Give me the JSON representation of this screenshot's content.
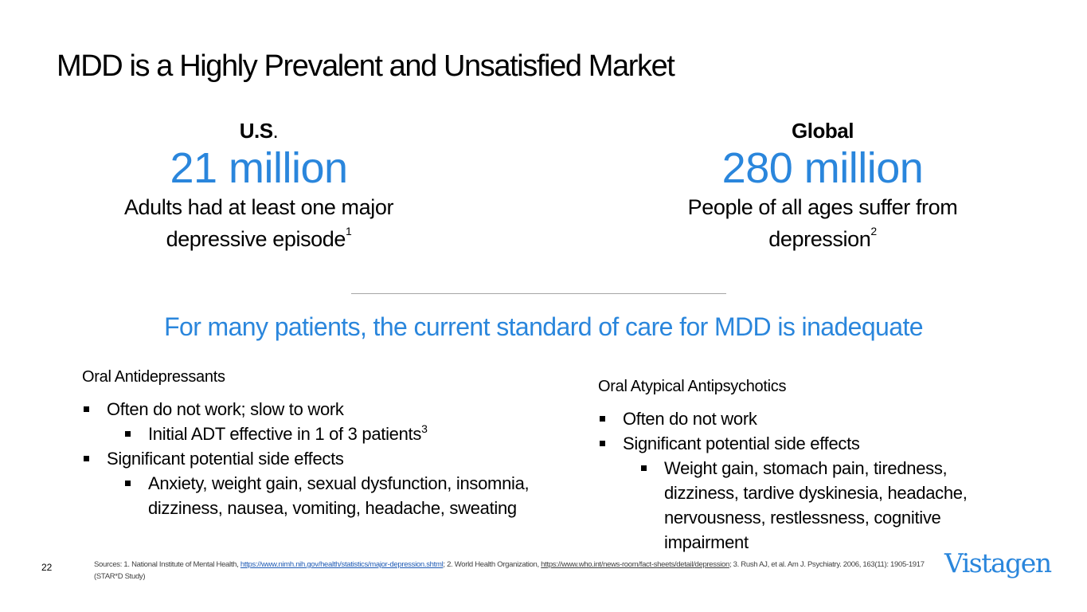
{
  "slide": {
    "title": "MDD is a Highly Prevalent and Unsatisfied Market",
    "page_number": "22"
  },
  "stats": {
    "us": {
      "region": "U.S",
      "region_suffix": ".",
      "value": "21 million",
      "description_line1": "Adults had at least one major",
      "description_line2": "depressive episode",
      "footnote": "1"
    },
    "global": {
      "region": "Global",
      "value": "280 million",
      "description_line1": "People of all ages suffer from",
      "description_line2": "depression",
      "footnote": "2"
    }
  },
  "subhead": "For many patients, the current standard of care for MDD is inadequate",
  "oral_antidepressants": {
    "heading": "Oral Antidepressants",
    "items": [
      {
        "text": "Often do not work; slow to work"
      },
      {
        "text": "Initial ADT effective in 1 of 3 patients",
        "footnote": "3"
      },
      {
        "text": "Significant potential side effects"
      },
      {
        "text": "Anxiety, weight gain, sexual dysfunction, insomnia, dizziness, nausea, vomiting, headache, sweating"
      }
    ]
  },
  "oral_atypical_antipsychotics": {
    "heading": "Oral Atypical Antipsychotics",
    "items": [
      {
        "text": "Often do not work"
      },
      {
        "text": "Significant potential side effects"
      },
      {
        "text": "Weight gain, stomach pain, tiredness, dizziness, tardive dyskinesia, headache, nervousness, restlessness, cognitive impairment"
      }
    ]
  },
  "sources": {
    "prefix": "Sources: 1. National Institute of Mental Health, ",
    "link1": "https://www.nimh.nih.gov/health/statistics/major-depression.shtml",
    "mid": "; 2. World Health Organization, ",
    "link2": "https://www.who.int/news-room/fact-sheets/detail/depression",
    "suffix": "; 3. Rush AJ, et al. Am J. Psychiatry. 2006, 163(11): 1905-1917 (STAR*D Study)"
  },
  "logo": {
    "text": "Vistagen"
  },
  "colors": {
    "accent_blue": "#2A86DC",
    "text": "#000000",
    "divider": "#a6a6a6"
  }
}
